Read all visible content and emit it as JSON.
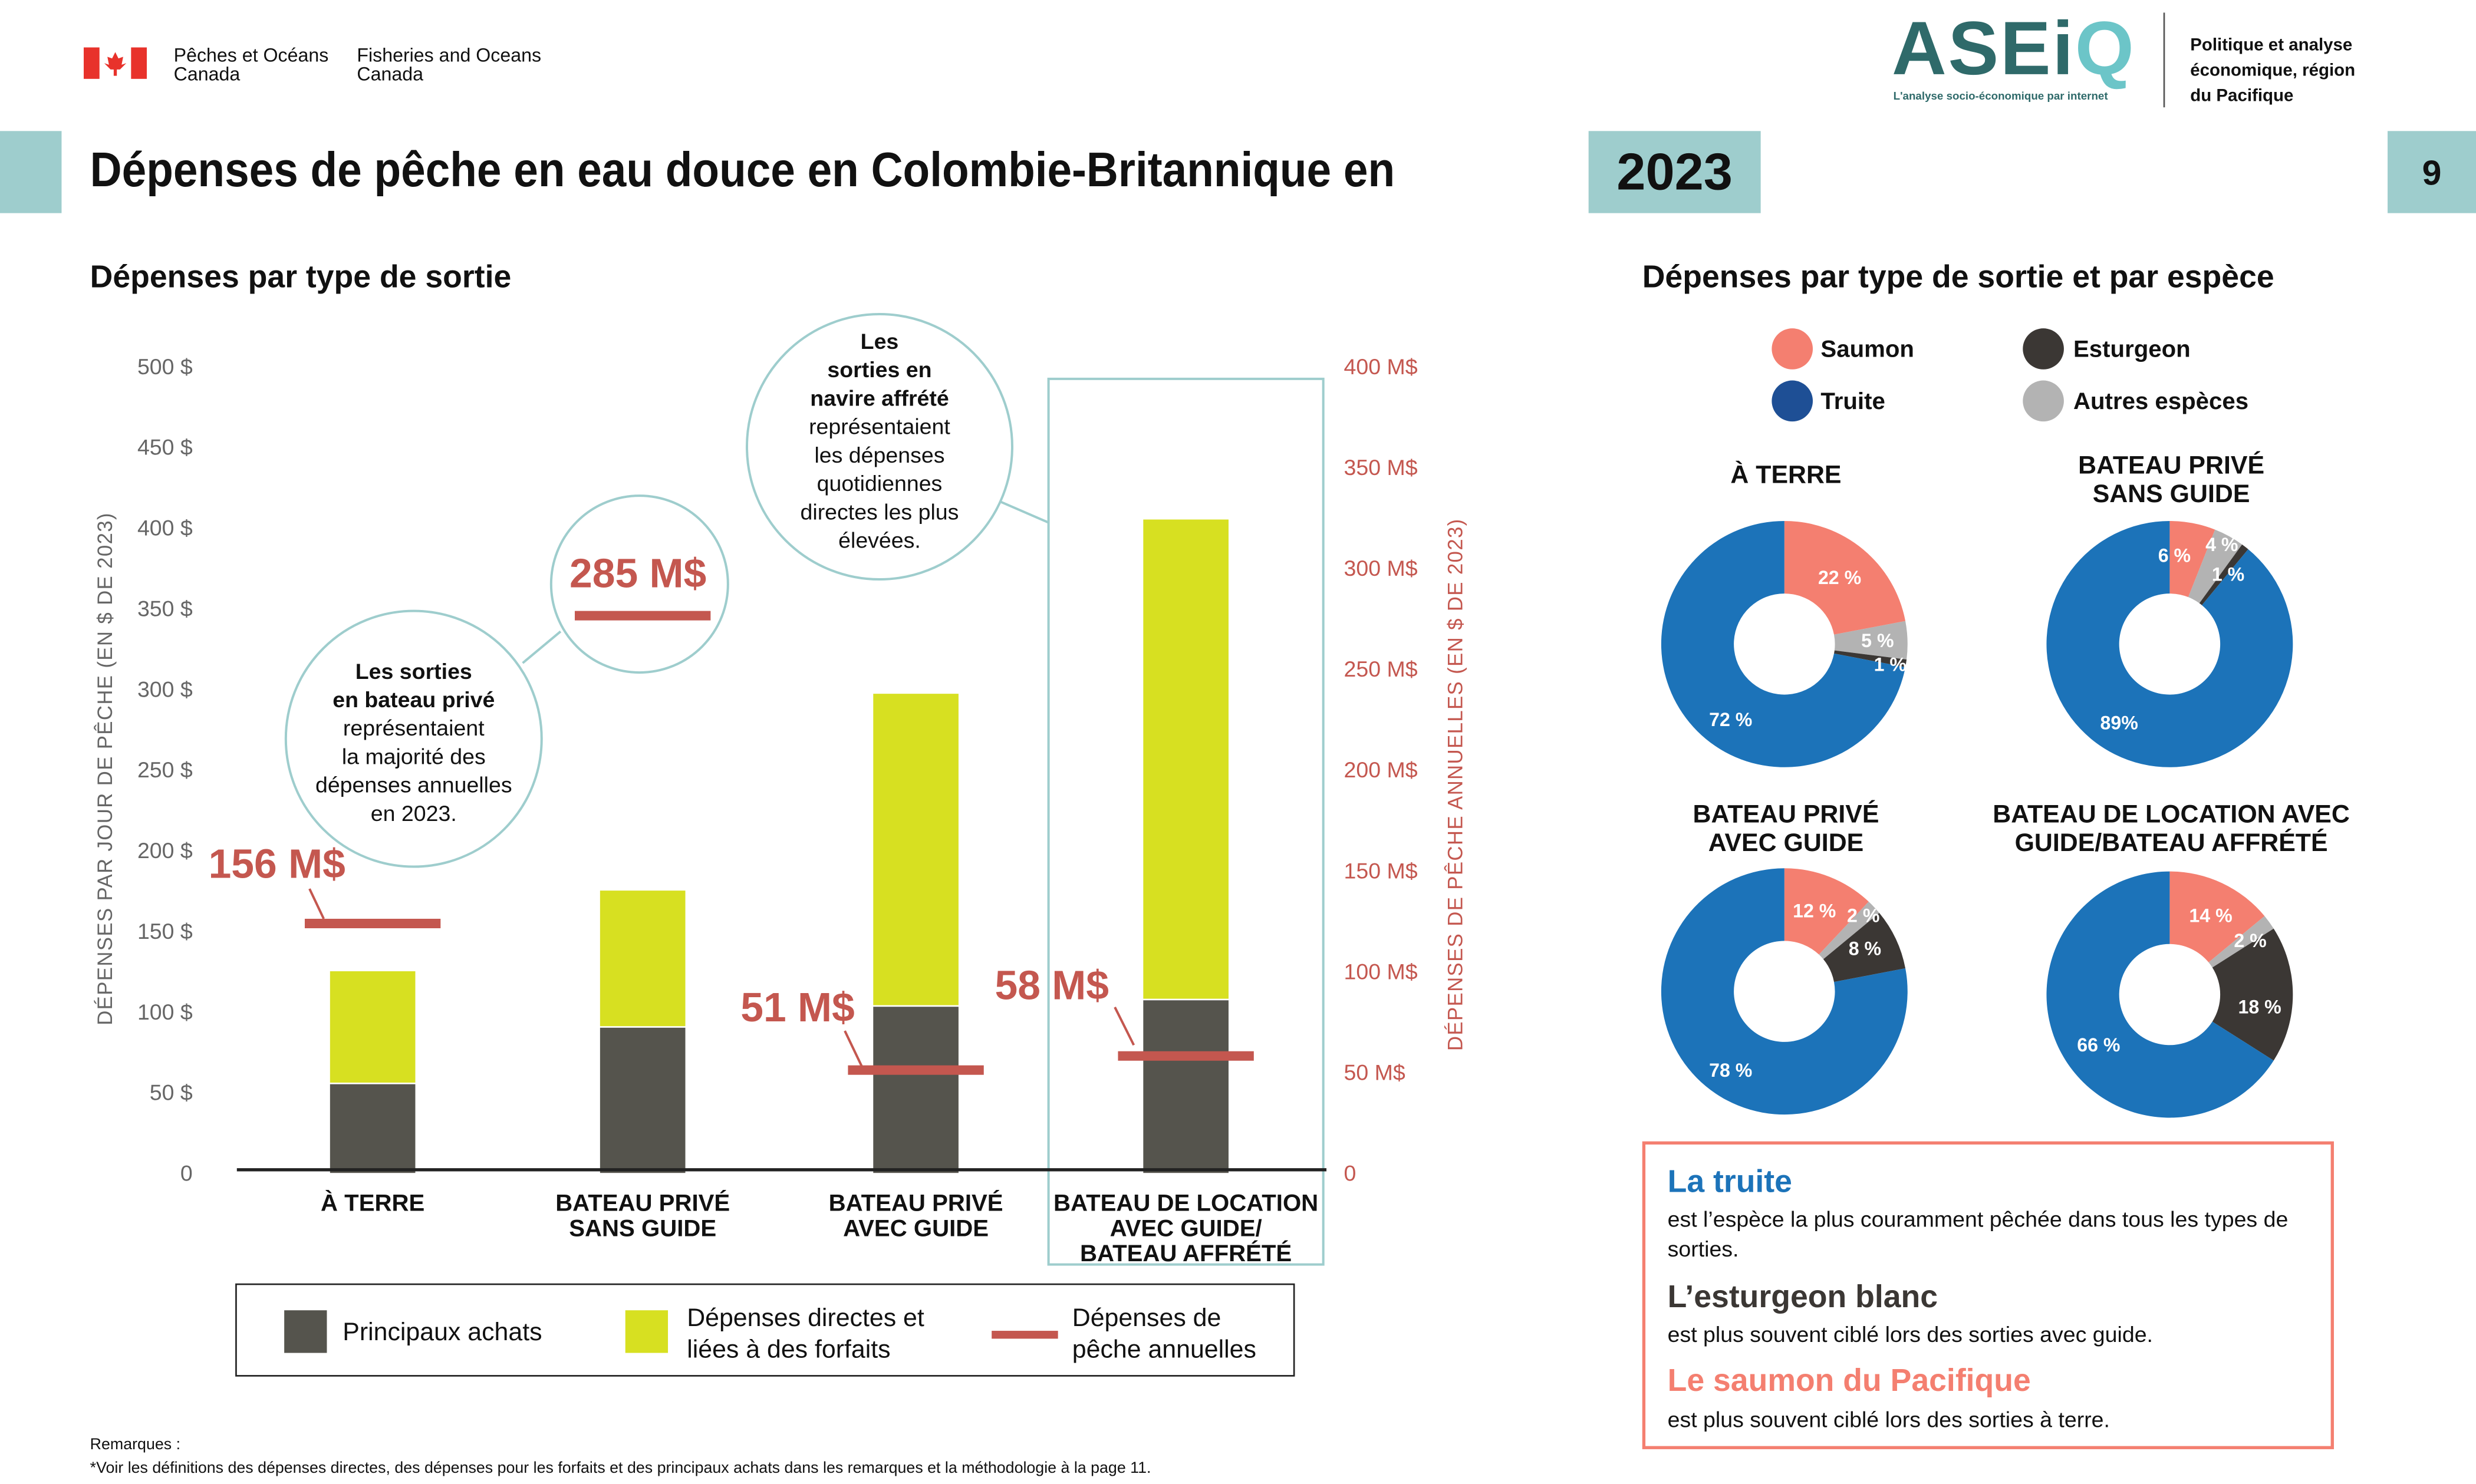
{
  "header": {
    "gov_fr": [
      "Pêches et Océans",
      "Canada"
    ],
    "gov_en": [
      "Fisheries and Oceans",
      "Canada"
    ],
    "logo_text": "ASEiQ",
    "logo_tagline": "L'analyse socio-économique par internet",
    "org": [
      "Politique et analyse",
      "économique, région",
      "du Pacifique"
    ],
    "title": "Dépenses de pêche en eau douce en Colombie-Britannique en",
    "year": "2023",
    "page": "9"
  },
  "colors": {
    "teal": "#9ecdcd",
    "salmon": "#f47f70",
    "trout": "#1c73b9",
    "sturgeon": "#3b3734",
    "other": "#b3b3b3",
    "major": "#55544d",
    "direct": "#d7e021",
    "annual": "#c4574f"
  },
  "left_section": {
    "title": "Dépenses par type de sortie"
  },
  "right_section": {
    "title": "Dépenses par type de sortie et par espèce"
  },
  "callouts": {
    "private": [
      "Les sorties",
      "en bateau privé",
      "représentaient",
      "la majorité des",
      "dépenses annuelles",
      "en 2023."
    ],
    "charter": [
      "Les",
      "sorties en",
      "navire affrété",
      "représentaient",
      "les dépenses",
      "quotidiennes",
      "directes les plus",
      "élevées."
    ]
  },
  "legend": {
    "major": "Principaux achats",
    "direct": [
      "Dépenses directes et",
      "liées à des forfaits"
    ],
    "annual": [
      "Dépenses de",
      "pêche annuelles"
    ]
  },
  "chart_data": [
    {
      "type": "bar",
      "stacked": true,
      "categories": [
        [
          "À TERRE"
        ],
        [
          "BATEAU PRIVÉ",
          "SANS GUIDE"
        ],
        [
          "BATEAU PRIVÉ",
          "AVEC GUIDE"
        ],
        [
          "BATEAU DE LOCATION",
          "AVEC GUIDE/",
          "BATEAU AFFRÉTÉ"
        ]
      ],
      "ylabel": "DÉPENSES PAR JOUR DE PÊCHE (EN $ DE 2023)",
      "ylabel_right": "DÉPENSES DE PÊCHE ANNUELLES (EN $ DE 2023)",
      "ylim": [
        0,
        500
      ],
      "ylim_right": [
        0,
        400
      ],
      "yticks": [
        "0",
        "50 $",
        "100 $",
        "150 $",
        "200 $",
        "250 $",
        "300 $",
        "350 $",
        "400 $",
        "450 $",
        "500 $"
      ],
      "yticks_right": [
        "0",
        "50 M$",
        "100 M$",
        "150 M$",
        "200 M$",
        "250 M$",
        "300 M$",
        "350 M$",
        "400 M$"
      ],
      "series": [
        {
          "name": "Principaux achats",
          "values": [
            55,
            90,
            103,
            107
          ]
        },
        {
          "name": "Dépenses directes et liées à des forfaits",
          "values": [
            70,
            85,
            194,
            298
          ]
        }
      ],
      "annual": {
        "name": "Dépenses de pêche annuelles",
        "values": [
          156,
          285,
          51,
          58
        ],
        "labels": [
          "156 M$",
          "285 M$",
          "51 M$",
          "58 M$"
        ]
      }
    },
    {
      "type": "pie",
      "legend": [
        "Saumon",
        "Truite",
        "Esturgeon",
        "Autres espèces"
      ],
      "order": [
        "Saumon",
        "Autres espèces",
        "Esturgeon",
        "Truite"
      ],
      "charts": [
        {
          "title": [
            "À TERRE"
          ],
          "values": [
            22,
            5,
            1,
            72
          ],
          "labels": [
            "22 %",
            "5 %",
            "1 %",
            "72 %"
          ]
        },
        {
          "title": [
            "BATEAU PRIVÉ",
            "SANS GUIDE"
          ],
          "values": [
            6,
            4,
            1,
            89
          ],
          "labels": [
            "6 %",
            "4 %",
            "1 %",
            "89%"
          ]
        },
        {
          "title": [
            "BATEAU PRIVÉ",
            "AVEC GUIDE"
          ],
          "values": [
            12,
            2,
            8,
            78
          ],
          "labels": [
            "12 %",
            "2 %",
            "8 %",
            "78 %"
          ]
        },
        {
          "title": [
            "BATEAU DE LOCATION AVEC",
            "GUIDE/BATEAU AFFRÉTÉ"
          ],
          "values": [
            14,
            2,
            18,
            66
          ],
          "labels": [
            "14 %",
            "2 %",
            "18 %",
            "66 %"
          ]
        }
      ]
    }
  ],
  "info": [
    {
      "title": "La truite",
      "text": "est l’espèce la plus couramment pêchée dans tous les types de sorties."
    },
    {
      "title": "L’esturgeon blanc",
      "text": "est plus souvent ciblé lors des sorties avec guide."
    },
    {
      "title": "Le saumon du Pacifique",
      "text": "est plus souvent ciblé lors des sorties à terre."
    }
  ],
  "notes": {
    "label": "Remarques :",
    "text": "*Voir les définitions des dépenses directes, des dépenses pour les forfaits et des principaux achats dans les remarques et la méthodologie à la page 11."
  }
}
